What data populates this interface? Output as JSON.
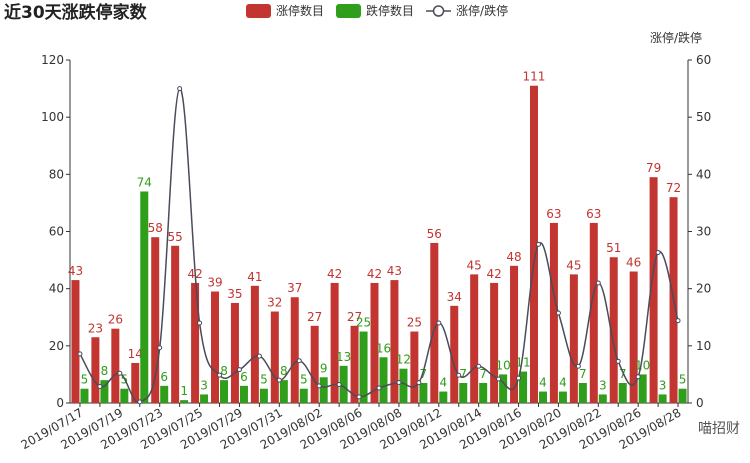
{
  "chart_data": {
    "type": "bar_line",
    "title": "近30天涨跌停家数",
    "y2_label": "涨停/跌停",
    "watermark": "喵招财",
    "categories": [
      "2019/07/17",
      null,
      "2019/07/19",
      null,
      "2019/07/23",
      null,
      "2019/07/25",
      null,
      "2019/07/29",
      null,
      "2019/07/31",
      null,
      "2019/08/02",
      null,
      "2019/08/06",
      null,
      "2019/08/08",
      null,
      "2019/08/12",
      null,
      "2019/08/14",
      null,
      "2019/08/16",
      null,
      "2019/08/20",
      null,
      "2019/08/22",
      null,
      "2019/08/26",
      null,
      "2019/08/28"
    ],
    "series": [
      {
        "name": "涨停数目",
        "type": "bar",
        "color": "#c23531",
        "values": [
          43,
          23,
          26,
          14,
          58,
          55,
          42,
          39,
          35,
          41,
          32,
          37,
          27,
          42,
          27,
          42,
          43,
          25,
          56,
          34,
          45,
          42,
          48,
          111,
          63,
          45,
          63,
          51,
          46,
          79,
          72
        ]
      },
      {
        "name": "跌停数目",
        "type": "bar",
        "color": "#2f9e1b",
        "values": [
          5,
          8,
          5,
          74,
          6,
          1,
          3,
          8,
          6,
          5,
          8,
          5,
          9,
          13,
          25,
          16,
          12,
          7,
          4,
          7,
          7,
          10,
          11,
          4,
          4,
          7,
          3,
          7,
          10,
          3,
          5
        ]
      },
      {
        "name": "涨停/跌停",
        "type": "line",
        "axis": "y2",
        "color": "#4b4b5a",
        "values": [
          8.6,
          2.88,
          5.2,
          0.19,
          9.67,
          55,
          14,
          4.88,
          5.83,
          8.2,
          4,
          7.4,
          3,
          3.23,
          1.08,
          2.63,
          3.58,
          3.57,
          14,
          4.86,
          6.43,
          4.2,
          4.36,
          27.75,
          15.75,
          6.43,
          21,
          7.29,
          4.6,
          26.33,
          14.4
        ]
      }
    ],
    "ylim": [
      0,
      120
    ],
    "yticks": [
      0,
      20,
      40,
      60,
      80,
      100,
      120
    ],
    "y2lim": [
      0,
      60
    ],
    "y2ticks": [
      0,
      10,
      20,
      30,
      40,
      50,
      60
    ],
    "legend": "top"
  }
}
